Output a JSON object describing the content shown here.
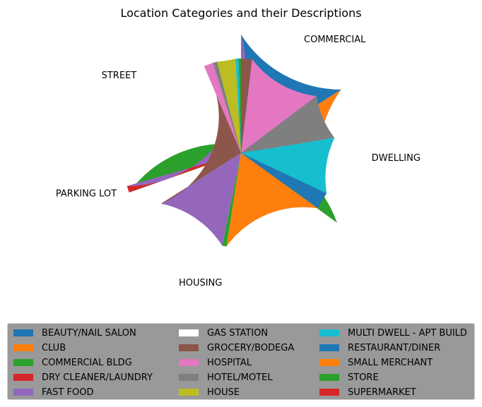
{
  "chart_data": {
    "type": "pie",
    "title": "Location Categories and their Descriptions",
    "outer": [
      {
        "label": "COMMERCIAL",
        "value": 16,
        "color": "#1f77b4"
      },
      {
        "label": "DWELLING",
        "value": 19,
        "color": "#ff7f0e"
      },
      {
        "label": "HOUSING",
        "value": 34.6,
        "color": "#2ca02c"
      },
      {
        "label": "PARKING LOT",
        "value": 0.9,
        "color": "#d62728"
      },
      {
        "label": "STREET",
        "value": 29.5,
        "color": "#9467bd"
      }
    ],
    "inner": [
      {
        "category": "GROCERY/BODEGA",
        "value": 1.8,
        "color": "#8c564b"
      },
      {
        "category": "HOSPITAL",
        "value": 12.3,
        "color": "#e377c2"
      },
      {
        "category": "HOTEL/MOTEL",
        "value": 7.4,
        "color": "#7f7f7f"
      },
      {
        "category": "MULTI DWELL - APT BUILD",
        "value": 9.2,
        "color": "#17becf"
      },
      {
        "category": "RESTAURANT/DINER",
        "value": 2.8,
        "color": "#1f77b4"
      },
      {
        "category": "SMALL MERCHANT",
        "value": 16.8,
        "color": "#ff7f0e"
      },
      {
        "category": "STORE",
        "value": 0.7,
        "color": "#2ca02c"
      },
      {
        "category": "FAST FOOD",
        "value": 12.3,
        "color": "#9467bd"
      },
      {
        "category": "GROCERY/BODEGA",
        "value": 26.5,
        "color": "#8c564b"
      },
      {
        "category": "HOSPITAL",
        "value": 1.5,
        "color": "#e377c2"
      },
      {
        "category": "HOTEL/MOTEL",
        "value": 0.7,
        "color": "#7f7f7f"
      },
      {
        "category": "HOUSE",
        "value": 3.0,
        "color": "#bcbd22"
      },
      {
        "category": "MULTI DWELL - APT BUILD",
        "value": 0.5,
        "color": "#17becf"
      },
      {
        "category": "COMMERCIAL BLDG",
        "value": 0.4,
        "color": "#2ca02c"
      }
    ],
    "legend_placement": "bottom",
    "legend": [
      {
        "label": "BEAUTY/NAIL SALON",
        "color": "#1f77b4"
      },
      {
        "label": "CLUB",
        "color": "#ff7f0e"
      },
      {
        "label": "COMMERCIAL BLDG",
        "color": "#2ca02c"
      },
      {
        "label": "DRY CLEANER/LAUNDRY",
        "color": "#d62728"
      },
      {
        "label": "FAST FOOD",
        "color": "#9467bd"
      },
      {
        "label": "GAS STATION",
        "color": "#ffffff"
      },
      {
        "label": "GROCERY/BODEGA",
        "color": "#8c564b"
      },
      {
        "label": "HOSPITAL",
        "color": "#e377c2"
      },
      {
        "label": "HOTEL/MOTEL",
        "color": "#7f7f7f"
      },
      {
        "label": "HOUSE",
        "color": "#bcbd22"
      },
      {
        "label": "MULTI DWELL - APT BUILD",
        "color": "#17becf"
      },
      {
        "label": "RESTAURANT/DINER",
        "color": "#1f77b4"
      },
      {
        "label": "SMALL MERCHANT",
        "color": "#ff7f0e"
      },
      {
        "label": "STORE",
        "color": "#2ca02c"
      },
      {
        "label": "SUPERMARKET",
        "color": "#d62728"
      }
    ]
  }
}
